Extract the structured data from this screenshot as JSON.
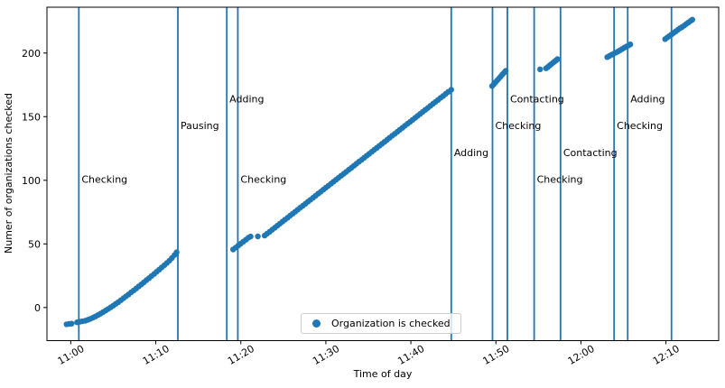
{
  "colors": {
    "accent": "#1f77b4",
    "axis": "#000000",
    "text": "#000000",
    "legend_border": "#cccccc"
  },
  "chart_data": {
    "type": "scatter",
    "title": "",
    "xlabel": "Time of day",
    "ylabel": "Numer of organizations checked",
    "x_unit": "minutes after 11:00",
    "xlim": [
      -2.8,
      76.2
    ],
    "ylim": [
      -26,
      236
    ],
    "grid": false,
    "x_ticks": [
      {
        "t": 0,
        "label": "11:00"
      },
      {
        "t": 10,
        "label": "11:10"
      },
      {
        "t": 20,
        "label": "11:20"
      },
      {
        "t": 30,
        "label": "11:30"
      },
      {
        "t": 40,
        "label": "11:40"
      },
      {
        "t": 50,
        "label": "11:50"
      },
      {
        "t": 60,
        "label": "12:00"
      },
      {
        "t": 70,
        "label": "12:10"
      }
    ],
    "y_ticks": [
      0,
      50,
      100,
      150,
      200
    ],
    "legend": {
      "label": "Organization is checked",
      "location": "lower center"
    },
    "event_lines": [
      {
        "t": 0.95,
        "label": "Checking",
        "label_v": 101
      },
      {
        "t": 12.6,
        "label": "Pausing",
        "label_v": 143
      },
      {
        "t": 18.35,
        "label": "Adding",
        "label_v": 164
      },
      {
        "t": 19.65,
        "label": "Checking",
        "label_v": 101
      },
      {
        "t": 44.75,
        "label": "Adding",
        "label_v": 122
      },
      {
        "t": 49.6,
        "label": "Checking",
        "label_v": 143
      },
      {
        "t": 51.35,
        "label": "Contacting",
        "label_v": 164
      },
      {
        "t": 54.5,
        "label": "Checking",
        "label_v": 101
      },
      {
        "t": 57.6,
        "label": "Contacting",
        "label_v": 122
      },
      {
        "t": 63.9,
        "label": "Checking",
        "label_v": 143
      },
      {
        "t": 65.5,
        "label": "Adding",
        "label_v": 164
      },
      {
        "t": 70.65,
        "label": "",
        "label_v": 101
      }
    ],
    "series": [
      {
        "name": "Organization is checked",
        "marker": "circle",
        "color": "#1f77b4",
        "points": [
          [
            -0.5,
            -13.2
          ],
          [
            -0.2,
            -12.9
          ],
          [
            0.1,
            -12.7
          ],
          [
            0.75,
            -11.6
          ],
          [
            1.05,
            -11.2
          ],
          [
            1.35,
            -10.8
          ],
          [
            1.7,
            -10.4
          ],
          [
            2.0,
            -9.7
          ],
          [
            2.3,
            -8.9
          ],
          [
            2.6,
            -8.0
          ],
          [
            2.9,
            -7.0
          ],
          [
            3.2,
            -5.9
          ],
          [
            3.5,
            -4.8
          ],
          [
            3.8,
            -3.6
          ],
          [
            4.1,
            -2.4
          ],
          [
            4.4,
            -1.1
          ],
          [
            4.7,
            0.2
          ],
          [
            5.0,
            1.5
          ],
          [
            5.3,
            2.9
          ],
          [
            5.6,
            4.3
          ],
          [
            5.9,
            5.8
          ],
          [
            6.2,
            7.3
          ],
          [
            6.5,
            8.8
          ],
          [
            6.8,
            10.3
          ],
          [
            7.1,
            11.9
          ],
          [
            7.4,
            13.4
          ],
          [
            7.7,
            15.0
          ],
          [
            8.0,
            16.6
          ],
          [
            8.3,
            18.2
          ],
          [
            8.6,
            19.8
          ],
          [
            8.9,
            21.5
          ],
          [
            9.2,
            23.1
          ],
          [
            9.5,
            24.8
          ],
          [
            9.8,
            26.4
          ],
          [
            10.1,
            28.1
          ],
          [
            10.4,
            29.8
          ],
          [
            10.7,
            31.5
          ],
          [
            11.0,
            33.2
          ],
          [
            11.3,
            35.0
          ],
          [
            11.6,
            36.8
          ],
          [
            11.9,
            38.9
          ],
          [
            12.2,
            41.3
          ],
          [
            12.45,
            43.4
          ],
          [
            19.1,
            45.6
          ],
          [
            19.4,
            47.1
          ],
          [
            19.7,
            48.7
          ],
          [
            20.0,
            50.2
          ],
          [
            20.3,
            51.8
          ],
          [
            20.6,
            53.3
          ],
          [
            20.9,
            54.9
          ],
          [
            21.15,
            55.8
          ],
          [
            22.0,
            55.9
          ],
          [
            22.8,
            56.5
          ],
          [
            23.1,
            58.1
          ],
          [
            23.4,
            59.6
          ],
          [
            23.7,
            61.2
          ],
          [
            24.0,
            62.8
          ],
          [
            24.3,
            64.3
          ],
          [
            24.6,
            65.9
          ],
          [
            24.9,
            67.5
          ],
          [
            25.2,
            69.1
          ],
          [
            25.5,
            70.6
          ],
          [
            25.8,
            72.2
          ],
          [
            26.1,
            73.8
          ],
          [
            26.4,
            75.3
          ],
          [
            26.7,
            76.9
          ],
          [
            27.0,
            78.5
          ],
          [
            27.3,
            80.0
          ],
          [
            27.6,
            81.6
          ],
          [
            27.9,
            83.2
          ],
          [
            28.2,
            84.7
          ],
          [
            28.5,
            86.3
          ],
          [
            28.8,
            87.9
          ],
          [
            29.1,
            89.5
          ],
          [
            29.4,
            91.0
          ],
          [
            29.7,
            92.6
          ],
          [
            30.0,
            94.2
          ],
          [
            30.3,
            95.7
          ],
          [
            30.6,
            97.3
          ],
          [
            30.9,
            98.9
          ],
          [
            31.2,
            100.4
          ],
          [
            31.5,
            102.0
          ],
          [
            31.8,
            103.6
          ],
          [
            32.1,
            105.1
          ],
          [
            32.4,
            106.7
          ],
          [
            32.7,
            108.3
          ],
          [
            33.0,
            109.8
          ],
          [
            33.3,
            111.4
          ],
          [
            33.6,
            113.0
          ],
          [
            33.9,
            114.6
          ],
          [
            34.2,
            116.1
          ],
          [
            34.5,
            117.7
          ],
          [
            34.8,
            119.3
          ],
          [
            35.1,
            120.8
          ],
          [
            35.4,
            122.4
          ],
          [
            35.7,
            124.0
          ],
          [
            36.0,
            125.5
          ],
          [
            36.3,
            127.1
          ],
          [
            36.6,
            128.7
          ],
          [
            36.9,
            130.2
          ],
          [
            37.2,
            131.8
          ],
          [
            37.5,
            133.4
          ],
          [
            37.8,
            135.0
          ],
          [
            38.1,
            136.5
          ],
          [
            38.4,
            138.1
          ],
          [
            38.7,
            139.7
          ],
          [
            39.0,
            141.2
          ],
          [
            39.3,
            142.8
          ],
          [
            39.6,
            144.4
          ],
          [
            39.9,
            145.9
          ],
          [
            40.2,
            147.5
          ],
          [
            40.5,
            149.1
          ],
          [
            40.8,
            150.6
          ],
          [
            41.1,
            152.2
          ],
          [
            41.4,
            153.8
          ],
          [
            41.7,
            155.4
          ],
          [
            42.0,
            156.9
          ],
          [
            42.3,
            158.5
          ],
          [
            42.6,
            160.1
          ],
          [
            42.9,
            161.6
          ],
          [
            43.2,
            163.2
          ],
          [
            43.5,
            164.8
          ],
          [
            43.8,
            166.3
          ],
          [
            44.1,
            167.9
          ],
          [
            44.4,
            169.5
          ],
          [
            44.75,
            171.2
          ],
          [
            49.55,
            174.0
          ],
          [
            49.75,
            175.5
          ],
          [
            49.95,
            177.0
          ],
          [
            50.15,
            178.5
          ],
          [
            50.35,
            180.0
          ],
          [
            50.55,
            181.5
          ],
          [
            50.75,
            183.0
          ],
          [
            50.95,
            184.5
          ],
          [
            51.15,
            186.0
          ],
          [
            55.2,
            187.2
          ],
          [
            55.9,
            188.0
          ],
          [
            56.1,
            189.0
          ],
          [
            56.3,
            190.1
          ],
          [
            56.5,
            191.2
          ],
          [
            56.7,
            192.3
          ],
          [
            56.9,
            193.3
          ],
          [
            57.1,
            194.4
          ],
          [
            57.25,
            195.2
          ],
          [
            63.1,
            196.8
          ],
          [
            63.35,
            197.7
          ],
          [
            63.6,
            198.6
          ],
          [
            63.85,
            199.4
          ],
          [
            64.1,
            200.3
          ],
          [
            64.35,
            201.2
          ],
          [
            64.6,
            202.2
          ],
          [
            64.85,
            203.2
          ],
          [
            65.1,
            204.2
          ],
          [
            65.35,
            205.1
          ],
          [
            65.6,
            206.0
          ],
          [
            65.8,
            206.8
          ],
          [
            69.9,
            211.0
          ],
          [
            70.15,
            212.2
          ],
          [
            70.4,
            213.4
          ],
          [
            70.65,
            214.6
          ],
          [
            70.9,
            215.8
          ],
          [
            71.15,
            217.0
          ],
          [
            71.4,
            218.3
          ],
          [
            71.65,
            219.5
          ],
          [
            71.9,
            220.4
          ],
          [
            72.15,
            221.6
          ],
          [
            72.4,
            222.9
          ],
          [
            72.65,
            224.1
          ],
          [
            72.9,
            225.3
          ],
          [
            73.1,
            226.2
          ]
        ]
      }
    ]
  }
}
